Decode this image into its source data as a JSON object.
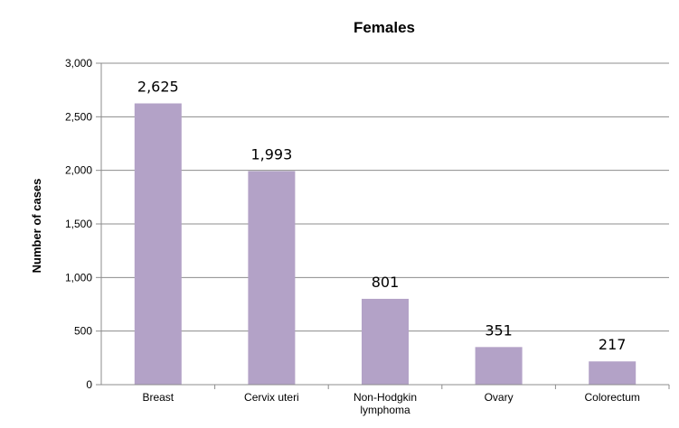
{
  "chart_data": {
    "type": "bar",
    "title": "Females",
    "xlabel": "",
    "ylabel": "Number of cases",
    "categories": [
      "Breast",
      "Cervix uteri",
      "Non-Hodgkin lymphoma",
      "Ovary",
      "Colorectum"
    ],
    "category_label_lines": [
      [
        "Breast"
      ],
      [
        "Cervix uteri"
      ],
      [
        "Non-Hodgkin",
        "lymphoma"
      ],
      [
        "Ovary"
      ],
      [
        "Colorectum"
      ]
    ],
    "values": [
      2625,
      1993,
      801,
      351,
      217
    ],
    "data_labels": [
      "2,625",
      "1,993",
      "801",
      "351",
      "217"
    ],
    "ylim": [
      0,
      3000
    ],
    "yticks": [
      0,
      500,
      1000,
      1500,
      2000,
      2500,
      3000
    ],
    "ytick_labels": [
      "0",
      "500",
      "1,000",
      "1,500",
      "2,000",
      "2,500",
      "3,000"
    ],
    "grid": true,
    "legend": "none",
    "bar_color": "#b3a2c7",
    "grid_color": "#8c8c8c"
  }
}
